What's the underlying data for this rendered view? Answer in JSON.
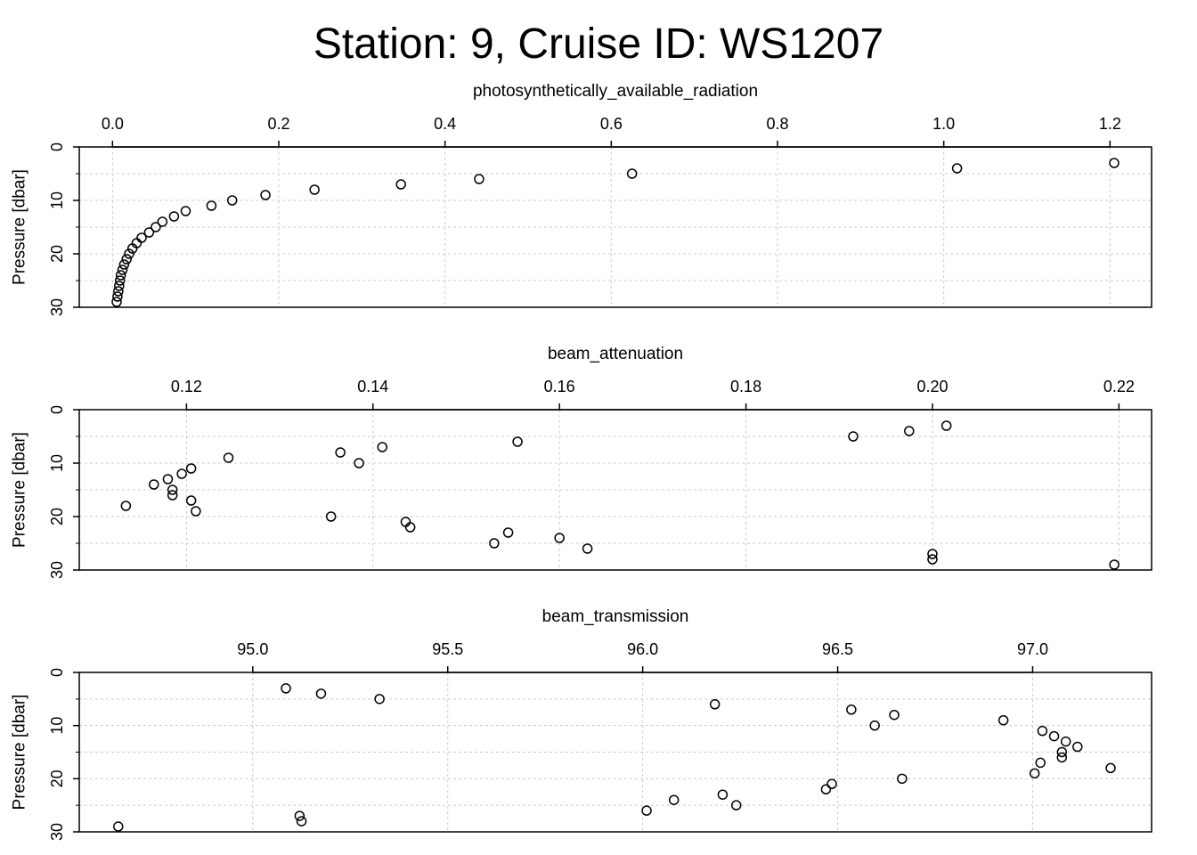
{
  "title": "Station: 9, Cruise ID: WS1207",
  "chart_data": [
    {
      "type": "scatter",
      "xlabel": "photosynthetically_available_radiation",
      "ylabel": "Pressure [dbar]",
      "x_axis_position": "top",
      "y_reversed": true,
      "xlim": [
        -0.04,
        1.25
      ],
      "ylim": [
        0,
        30
      ],
      "xticks": [
        0.0,
        0.2,
        0.4,
        0.6,
        0.8,
        1.0,
        1.2
      ],
      "xtick_labels": [
        "0.0",
        "0.2",
        "0.4",
        "0.6",
        "0.8",
        "1.0",
        "1.2"
      ],
      "yticks": [
        0,
        10,
        20,
        30
      ],
      "grid": true,
      "points": [
        {
          "x": 1.205,
          "y": 3
        },
        {
          "x": 1.016,
          "y": 4
        },
        {
          "x": 0.625,
          "y": 5
        },
        {
          "x": 0.441,
          "y": 6
        },
        {
          "x": 0.347,
          "y": 7
        },
        {
          "x": 0.243,
          "y": 8
        },
        {
          "x": 0.184,
          "y": 9
        },
        {
          "x": 0.144,
          "y": 10
        },
        {
          "x": 0.119,
          "y": 11
        },
        {
          "x": 0.088,
          "y": 12
        },
        {
          "x": 0.074,
          "y": 13
        },
        {
          "x": 0.06,
          "y": 14
        },
        {
          "x": 0.052,
          "y": 15
        },
        {
          "x": 0.044,
          "y": 16
        },
        {
          "x": 0.035,
          "y": 17
        },
        {
          "x": 0.029,
          "y": 18
        },
        {
          "x": 0.024,
          "y": 19
        },
        {
          "x": 0.02,
          "y": 20
        },
        {
          "x": 0.017,
          "y": 21
        },
        {
          "x": 0.014,
          "y": 22
        },
        {
          "x": 0.012,
          "y": 23
        },
        {
          "x": 0.01,
          "y": 24
        },
        {
          "x": 0.009,
          "y": 25
        },
        {
          "x": 0.008,
          "y": 26
        },
        {
          "x": 0.007,
          "y": 27
        },
        {
          "x": 0.006,
          "y": 28
        },
        {
          "x": 0.005,
          "y": 29
        }
      ]
    },
    {
      "type": "scatter",
      "xlabel": "beam_attenuation",
      "ylabel": "Pressure [dbar]",
      "x_axis_position": "top",
      "y_reversed": true,
      "xlim": [
        0.1085,
        0.2235
      ],
      "ylim": [
        0,
        30
      ],
      "xticks": [
        0.12,
        0.14,
        0.16,
        0.18,
        0.2,
        0.22
      ],
      "xtick_labels": [
        "0.12",
        "0.14",
        "0.16",
        "0.18",
        "0.20",
        "0.22"
      ],
      "yticks": [
        0,
        10,
        20,
        30
      ],
      "grid": true,
      "points": [
        {
          "x": 0.2015,
          "y": 3
        },
        {
          "x": 0.1975,
          "y": 4
        },
        {
          "x": 0.1915,
          "y": 5
        },
        {
          "x": 0.1555,
          "y": 6
        },
        {
          "x": 0.141,
          "y": 7
        },
        {
          "x": 0.1365,
          "y": 8
        },
        {
          "x": 0.1245,
          "y": 9
        },
        {
          "x": 0.1385,
          "y": 10
        },
        {
          "x": 0.1205,
          "y": 11
        },
        {
          "x": 0.1195,
          "y": 12
        },
        {
          "x": 0.118,
          "y": 13
        },
        {
          "x": 0.1165,
          "y": 14
        },
        {
          "x": 0.1185,
          "y": 15
        },
        {
          "x": 0.1185,
          "y": 16
        },
        {
          "x": 0.1205,
          "y": 17
        },
        {
          "x": 0.1135,
          "y": 18
        },
        {
          "x": 0.121,
          "y": 19
        },
        {
          "x": 0.1355,
          "y": 20
        },
        {
          "x": 0.1435,
          "y": 21
        },
        {
          "x": 0.144,
          "y": 22
        },
        {
          "x": 0.1545,
          "y": 23
        },
        {
          "x": 0.16,
          "y": 24
        },
        {
          "x": 0.153,
          "y": 25
        },
        {
          "x": 0.163,
          "y": 26
        },
        {
          "x": 0.2,
          "y": 27
        },
        {
          "x": 0.2,
          "y": 28
        },
        {
          "x": 0.2195,
          "y": 29
        }
      ]
    },
    {
      "type": "scatter",
      "xlabel": "beam_transmission",
      "ylabel": "Pressure [dbar]",
      "x_axis_position": "top",
      "y_reversed": true,
      "xlim": [
        94.555,
        97.305
      ],
      "ylim": [
        0,
        30
      ],
      "xticks": [
        95.0,
        95.5,
        96.0,
        96.5,
        97.0
      ],
      "xtick_labels": [
        "95.0",
        "95.5",
        "96.0",
        "96.5",
        "97.0"
      ],
      "yticks": [
        0,
        10,
        20,
        30
      ],
      "grid": true,
      "points": [
        {
          "x": 95.085,
          "y": 3
        },
        {
          "x": 95.175,
          "y": 4
        },
        {
          "x": 95.325,
          "y": 5
        },
        {
          "x": 96.185,
          "y": 6
        },
        {
          "x": 96.535,
          "y": 7
        },
        {
          "x": 96.645,
          "y": 8
        },
        {
          "x": 96.925,
          "y": 9
        },
        {
          "x": 96.595,
          "y": 10
        },
        {
          "x": 97.025,
          "y": 11
        },
        {
          "x": 97.055,
          "y": 12
        },
        {
          "x": 97.085,
          "y": 13
        },
        {
          "x": 97.115,
          "y": 14
        },
        {
          "x": 97.075,
          "y": 15
        },
        {
          "x": 97.075,
          "y": 16
        },
        {
          "x": 97.02,
          "y": 17
        },
        {
          "x": 97.2,
          "y": 18
        },
        {
          "x": 97.005,
          "y": 19
        },
        {
          "x": 96.665,
          "y": 20
        },
        {
          "x": 96.485,
          "y": 21
        },
        {
          "x": 96.47,
          "y": 22
        },
        {
          "x": 96.205,
          "y": 23
        },
        {
          "x": 96.08,
          "y": 24
        },
        {
          "x": 96.24,
          "y": 25
        },
        {
          "x": 96.01,
          "y": 26
        },
        {
          "x": 95.12,
          "y": 27
        },
        {
          "x": 95.125,
          "y": 28
        },
        {
          "x": 94.655,
          "y": 29
        }
      ]
    }
  ]
}
